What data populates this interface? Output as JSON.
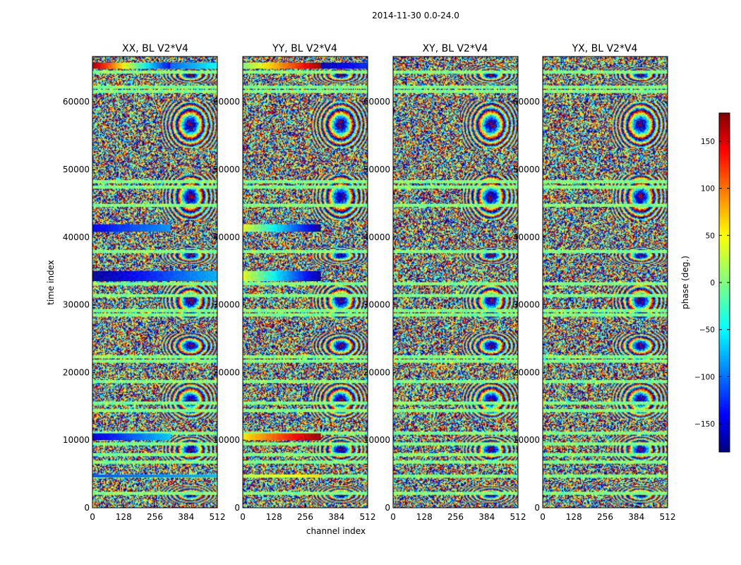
{
  "chart_data": {
    "type": "heatmap",
    "suptitle": "2014-11-30 0.0-24.0",
    "xlabel": "channel index",
    "ylabel": "time index",
    "xlim": [
      0,
      512
    ],
    "ylim": [
      0,
      66700
    ],
    "xticks": [
      0,
      128,
      256,
      384,
      512
    ],
    "yticks": [
      0,
      10000,
      20000,
      30000,
      40000,
      50000,
      60000
    ],
    "colorbar": {
      "label": "phase (deg.)",
      "range": [
        -180,
        180
      ],
      "ticks": [
        150,
        100,
        50,
        0,
        -50,
        -100,
        -150
      ],
      "tick_labels": [
        "150",
        "100",
        "50",
        "0",
        "−50",
        "−100",
        "−150"
      ],
      "colormap": "jet",
      "colors": [
        "#00007f",
        "#0000ff",
        "#007fff",
        "#00ffff",
        "#7fff7f",
        "#ffff00",
        "#ff7f00",
        "#ff0000",
        "#7f0000"
      ]
    },
    "panels": [
      {
        "title": "XX, BL V2*V4",
        "bands": [
          {
            "t0": 64900,
            "t1": 65800,
            "ch0": 0,
            "ch1": 320,
            "phase0": 170,
            "phase1": -140
          },
          {
            "t0": 64900,
            "t1": 65800,
            "ch0": 320,
            "ch1": 512,
            "phase0": -100,
            "phase1": -40
          },
          {
            "t0": 40800,
            "t1": 41900,
            "ch0": 0,
            "ch1": 320,
            "phase0": -140,
            "phase1": -80
          },
          {
            "t0": 33500,
            "t1": 35000,
            "ch0": 0,
            "ch1": 512,
            "phase0": -170,
            "phase1": -70
          },
          {
            "t0": 10000,
            "t1": 11000,
            "ch0": 0,
            "ch1": 320,
            "phase0": -150,
            "phase1": -60
          },
          {
            "t0": 4500,
            "t1": 4900,
            "ch0": 0,
            "ch1": 512,
            "phase0": -110,
            "phase1": -70
          }
        ]
      },
      {
        "title": "YY, BL V2*V4",
        "bands": [
          {
            "t0": 64900,
            "t1": 65800,
            "ch0": 0,
            "ch1": 320,
            "phase0": 0,
            "phase1": 170
          },
          {
            "t0": 64900,
            "t1": 65800,
            "ch0": 320,
            "ch1": 512,
            "phase0": -160,
            "phase1": -120
          },
          {
            "t0": 40800,
            "t1": 41900,
            "ch0": 0,
            "ch1": 320,
            "phase0": 40,
            "phase1": -170
          },
          {
            "t0": 33500,
            "t1": 35000,
            "ch0": 0,
            "ch1": 320,
            "phase0": 40,
            "phase1": -170
          },
          {
            "t0": 10000,
            "t1": 11000,
            "ch0": 0,
            "ch1": 320,
            "phase0": 50,
            "phase1": 175
          },
          {
            "t0": 4500,
            "t1": 4900,
            "ch0": 0,
            "ch1": 320,
            "phase0": 20,
            "phase1": 60
          }
        ]
      },
      {
        "title": "XY, BL V2*V4",
        "bands": []
      },
      {
        "title": "YX, BL V2*V4",
        "bands": []
      }
    ]
  }
}
